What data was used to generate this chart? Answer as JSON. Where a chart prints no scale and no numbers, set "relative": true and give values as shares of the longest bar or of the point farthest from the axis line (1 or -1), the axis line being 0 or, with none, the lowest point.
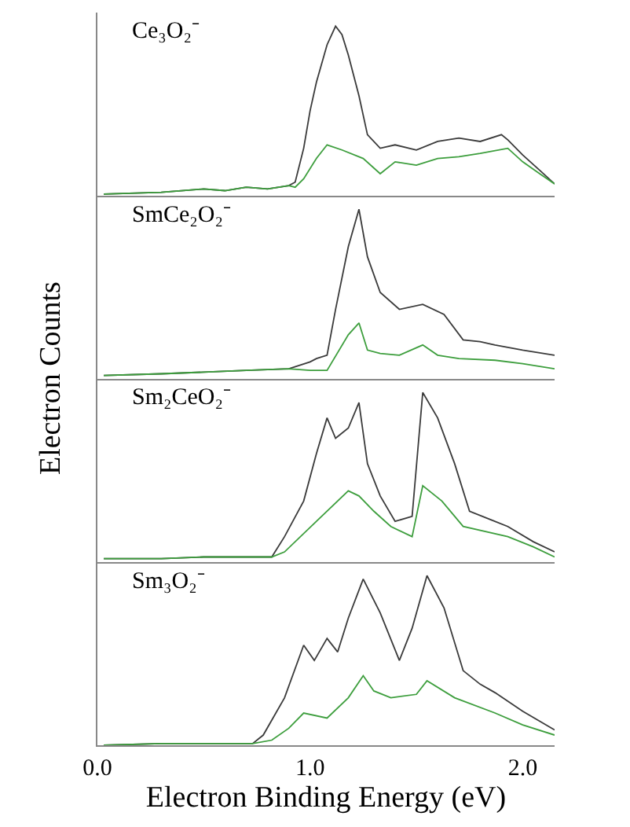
{
  "chart_data": [
    {
      "type": "line",
      "title": "Ce₃O₂⁻",
      "ylabel": "Electron Counts",
      "relative": true,
      "xlim": [
        0,
        2.15
      ],
      "tick_labels": false,
      "line_style": "solid",
      "series": [
        {
          "color": "#3a3a3a",
          "x": [
            0.03,
            0.3,
            0.5,
            0.6,
            0.7,
            0.8,
            0.9,
            0.93,
            0.97,
            1.0,
            1.03,
            1.08,
            1.12,
            1.15,
            1.18,
            1.23,
            1.27,
            1.33,
            1.4,
            1.5,
            1.6,
            1.7,
            1.8,
            1.9,
            1.93,
            2.0,
            2.08,
            2.15
          ],
          "values": [
            0.01,
            0.02,
            0.04,
            0.03,
            0.05,
            0.04,
            0.06,
            0.08,
            0.28,
            0.5,
            0.67,
            0.89,
            1.0,
            0.95,
            0.83,
            0.59,
            0.36,
            0.28,
            0.3,
            0.27,
            0.32,
            0.34,
            0.32,
            0.36,
            0.33,
            0.24,
            0.15,
            0.07
          ]
        },
        {
          "color": "#3d9e3d",
          "x": [
            0.03,
            0.3,
            0.5,
            0.6,
            0.7,
            0.8,
            0.9,
            0.93,
            0.97,
            1.03,
            1.08,
            1.15,
            1.25,
            1.33,
            1.4,
            1.5,
            1.6,
            1.7,
            1.8,
            1.93,
            2.0,
            2.08,
            2.15
          ],
          "values": [
            0.01,
            0.02,
            0.04,
            0.03,
            0.05,
            0.04,
            0.06,
            0.05,
            0.1,
            0.22,
            0.3,
            0.27,
            0.22,
            0.13,
            0.2,
            0.18,
            0.22,
            0.23,
            0.25,
            0.28,
            0.2,
            0.13,
            0.07
          ]
        }
      ]
    },
    {
      "type": "line",
      "title": "SmCe₂O₂⁻",
      "relative": true,
      "xlim": [
        0,
        2.15
      ],
      "tick_labels": false,
      "line_style": "solid",
      "series": [
        {
          "color": "#3a3a3a",
          "x": [
            0.03,
            0.3,
            0.5,
            0.7,
            0.9,
            1.0,
            1.03,
            1.08,
            1.12,
            1.18,
            1.23,
            1.27,
            1.33,
            1.42,
            1.53,
            1.63,
            1.72,
            1.8,
            1.87,
            2.0,
            2.15
          ],
          "values": [
            0.02,
            0.03,
            0.04,
            0.05,
            0.06,
            0.1,
            0.12,
            0.14,
            0.41,
            0.78,
            1.0,
            0.72,
            0.51,
            0.41,
            0.44,
            0.38,
            0.23,
            0.22,
            0.2,
            0.17,
            0.14
          ]
        },
        {
          "color": "#3d9e3d",
          "x": [
            0.03,
            0.3,
            0.5,
            0.7,
            0.9,
            1.0,
            1.08,
            1.18,
            1.23,
            1.27,
            1.33,
            1.42,
            1.53,
            1.6,
            1.7,
            1.87,
            2.0,
            2.15
          ],
          "values": [
            0.02,
            0.03,
            0.04,
            0.05,
            0.06,
            0.05,
            0.05,
            0.26,
            0.33,
            0.17,
            0.15,
            0.14,
            0.2,
            0.14,
            0.12,
            0.11,
            0.09,
            0.06
          ]
        }
      ]
    },
    {
      "type": "line",
      "title": "Sm₂CeO₂⁻",
      "relative": true,
      "xlim": [
        0,
        2.15
      ],
      "tick_labels": false,
      "line_style": "solid",
      "series": [
        {
          "color": "#3a3a3a",
          "x": [
            0.03,
            0.3,
            0.5,
            0.7,
            0.82,
            0.88,
            0.97,
            1.03,
            1.08,
            1.12,
            1.18,
            1.23,
            1.27,
            1.33,
            1.4,
            1.48,
            1.53,
            1.6,
            1.68,
            1.75,
            1.85,
            1.93,
            2.05,
            2.15
          ],
          "values": [
            0.02,
            0.02,
            0.03,
            0.03,
            0.03,
            0.15,
            0.36,
            0.64,
            0.85,
            0.73,
            0.79,
            0.94,
            0.58,
            0.39,
            0.24,
            0.27,
            1.0,
            0.85,
            0.58,
            0.3,
            0.25,
            0.21,
            0.12,
            0.06
          ]
        },
        {
          "color": "#3d9e3d",
          "x": [
            0.03,
            0.3,
            0.5,
            0.7,
            0.82,
            0.88,
            1.03,
            1.18,
            1.23,
            1.3,
            1.38,
            1.48,
            1.53,
            1.62,
            1.72,
            1.93,
            2.05,
            2.15
          ],
          "values": [
            0.02,
            0.02,
            0.03,
            0.03,
            0.03,
            0.06,
            0.24,
            0.42,
            0.39,
            0.3,
            0.21,
            0.15,
            0.45,
            0.36,
            0.21,
            0.15,
            0.09,
            0.03
          ]
        }
      ]
    },
    {
      "type": "line",
      "title": "Sm₃O₂⁻",
      "xlabel": "Electron Binding Energy (eV)",
      "relative": true,
      "xlim": [
        0,
        2.15
      ],
      "xticks": [
        {
          "value": 0,
          "label": "0.0"
        },
        {
          "value": 1,
          "label": "1.0"
        },
        {
          "value": 2,
          "label": "2.0"
        }
      ],
      "tick_labels": "x",
      "line_style": "solid",
      "series": [
        {
          "color": "#3a3a3a",
          "x": [
            0.03,
            0.3,
            0.5,
            0.73,
            0.78,
            0.88,
            0.97,
            1.02,
            1.08,
            1.13,
            1.18,
            1.25,
            1.33,
            1.42,
            1.48,
            1.55,
            1.63,
            1.72,
            1.8,
            1.87,
            2.0,
            2.15
          ],
          "values": [
            0.0,
            0.01,
            0.01,
            0.01,
            0.06,
            0.28,
            0.59,
            0.5,
            0.63,
            0.55,
            0.75,
            0.98,
            0.78,
            0.5,
            0.69,
            1.0,
            0.81,
            0.44,
            0.36,
            0.31,
            0.2,
            0.09
          ]
        },
        {
          "color": "#3d9e3d",
          "x": [
            0.03,
            0.3,
            0.5,
            0.73,
            0.82,
            0.9,
            0.97,
            1.08,
            1.18,
            1.25,
            1.3,
            1.38,
            1.5,
            1.55,
            1.68,
            1.87,
            2.0,
            2.15
          ],
          "values": [
            0.0,
            0.01,
            0.01,
            0.01,
            0.03,
            0.1,
            0.19,
            0.16,
            0.28,
            0.41,
            0.32,
            0.28,
            0.3,
            0.38,
            0.28,
            0.19,
            0.12,
            0.06
          ]
        }
      ]
    }
  ]
}
